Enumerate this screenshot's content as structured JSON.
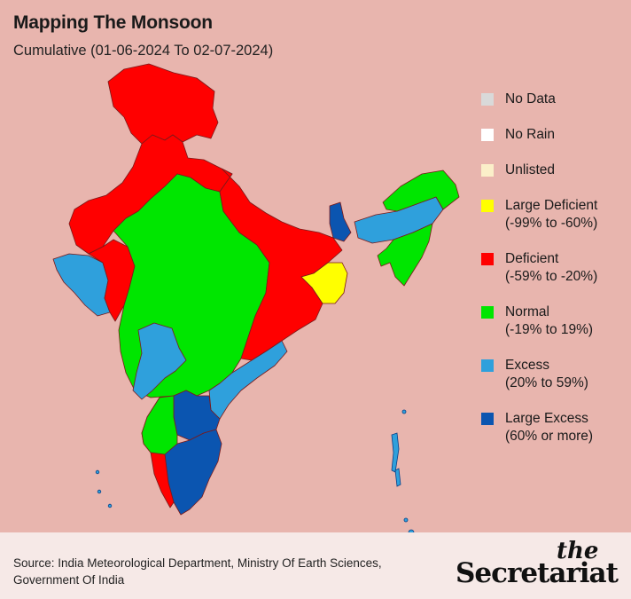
{
  "header": {
    "title": "Mapping The Monsoon",
    "subtitle": "Cumulative (01-06-2024 To 02-07-2024)"
  },
  "legend": [
    {
      "label": "No Data",
      "range": "",
      "color": "#d9d9d9"
    },
    {
      "label": "No Rain",
      "range": "",
      "color": "#ffffff"
    },
    {
      "label": "Unlisted",
      "range": "",
      "color": "#fbefc9"
    },
    {
      "label": "Large Deficient",
      "range": "(-99% to -60%)",
      "color": "#ffff00"
    },
    {
      "label": "Deficient",
      "range": "(-59% to -20%)",
      "color": "#ff0000"
    },
    {
      "label": "Normal",
      "range": "(-19% to 19%)",
      "color": "#00e600"
    },
    {
      "label": "Excess",
      "range": "(20% to 59%)",
      "color": "#2fa0dc"
    },
    {
      "label": "Large Excess",
      "range": "(60% or more)",
      "color": "#0b55b0"
    }
  ],
  "colors": {
    "background": "#e8b5ae",
    "footer": "#f6e9e7",
    "deficient": "#ff0000",
    "normal": "#00e600",
    "excess": "#2fa0dc",
    "large_excess": "#0b55b0",
    "large_deficient": "#ffff00"
  },
  "footer": {
    "source": "Source: India Meteorological Department, Ministry Of Earth Sciences, Government Of India",
    "brand_the": "the",
    "brand_name": "Secretariat"
  }
}
